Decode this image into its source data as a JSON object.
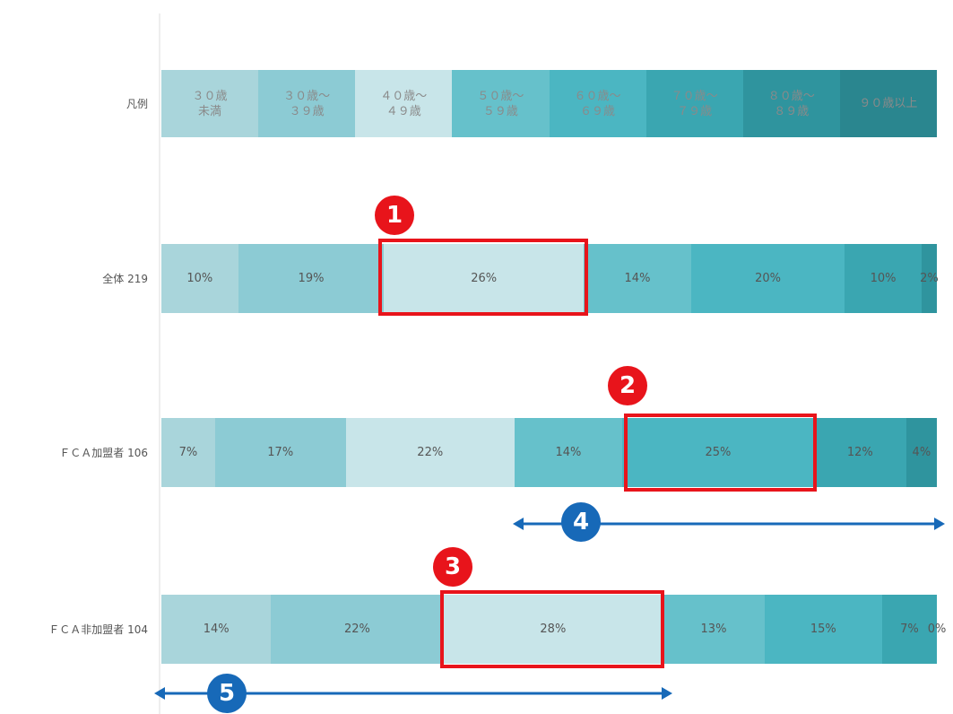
{
  "chart_data": {
    "type": "bar",
    "stacked": true,
    "orientation": "horizontal",
    "legend_title": "凡例",
    "categories": [
      "全体 219",
      "ＦＣＡ加盟者 106",
      "ＦＣＡ非加盟者 104"
    ],
    "series": [
      {
        "name": "３０歳\n未満",
        "color": "#a9d5db",
        "values": [
          10,
          7,
          14
        ],
        "value_labels": [
          "10%",
          "7%",
          "14%"
        ]
      },
      {
        "name": "３０歳～\n３９歳",
        "color": "#8ccbd4",
        "values": [
          19,
          17,
          22
        ],
        "value_labels": [
          "19%",
          "17%",
          "22%"
        ]
      },
      {
        "name": "４０歳～\n４９歳",
        "color": "#c8e5e9",
        "values": [
          26,
          22,
          28
        ],
        "value_labels": [
          "26%",
          "22%",
          "28%"
        ]
      },
      {
        "name": "５０歳～\n５９歳",
        "color": "#66c1cb",
        "values": [
          14,
          14,
          13
        ],
        "value_labels": [
          "14%",
          "14%",
          "13%"
        ]
      },
      {
        "name": "６０歳～\n６９歳",
        "color": "#4bb6c2",
        "values": [
          20,
          25,
          15
        ],
        "value_labels": [
          "20%",
          "25%",
          "15%"
        ]
      },
      {
        "name": "７０歳～\n７９歳",
        "color": "#3aa6b1",
        "values": [
          10,
          12,
          7
        ],
        "value_labels": [
          "10%",
          "12%",
          "7%"
        ]
      },
      {
        "name": "８０歳～\n８９歳",
        "color": "#2f949e",
        "values": [
          2,
          4,
          0
        ],
        "value_labels": [
          "2%",
          "4%",
          "0%"
        ]
      },
      {
        "name": "９０歳以上",
        "color": "#2a868f",
        "values": [
          null,
          null,
          null
        ]
      }
    ]
  },
  "annotations": {
    "boxes": [
      "1",
      "2",
      "3"
    ],
    "arrows": [
      "4",
      "5"
    ]
  }
}
